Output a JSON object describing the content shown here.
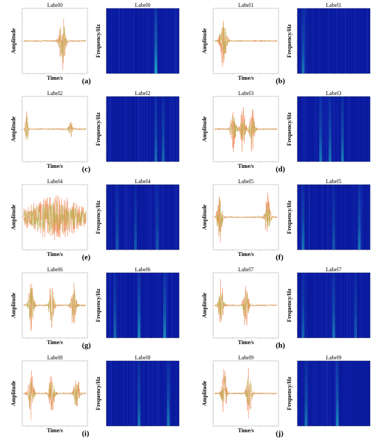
{
  "figure": {
    "panels": [
      {
        "caption": "(a)",
        "wave_title": "Label0",
        "spec_title": "Label0"
      },
      {
        "caption": "(b)",
        "wave_title": "Label1",
        "spec_title": "Label1"
      },
      {
        "caption": "(c)",
        "wave_title": "Label2",
        "spec_title": "Label2"
      },
      {
        "caption": "(d)",
        "wave_title": "Label3",
        "spec_title": "Label3"
      },
      {
        "caption": "(e)",
        "wave_title": "Label4",
        "spec_title": "Label4"
      },
      {
        "caption": "(f)",
        "wave_title": "Label5",
        "spec_title": "Label5"
      },
      {
        "caption": "(g)",
        "wave_title": "Label6",
        "spec_title": "Label6"
      },
      {
        "caption": "(h)",
        "wave_title": "Label7",
        "spec_title": "Label7"
      },
      {
        "caption": "(i)",
        "wave_title": "Label8",
        "spec_title": "Label8"
      },
      {
        "caption": "(j)",
        "wave_title": "Label9",
        "spec_title": "Label9"
      }
    ],
    "wave_xlabel": "Time/s",
    "wave_ylabel": "Amplitude",
    "spec_ylabel": "Frequency/Hz",
    "wave_colors": {
      "raw": "#f08050",
      "filtered": "#b8b048"
    },
    "spec_colors": {
      "background": "#0a1a9e",
      "band": "#22c8c8"
    }
  },
  "chart_data": [
    {
      "panel": "(a)",
      "type": "line",
      "title": "Label0",
      "xlabel": "Time/s",
      "ylabel": "Amplitude",
      "bursts": [
        {
          "t": 0.62,
          "amp": 0.95,
          "width": 0.05
        }
      ]
    },
    {
      "panel": "(a)",
      "type": "heatmap",
      "title": "Label0",
      "ylabel": "Frequency/Hz",
      "bands": [
        {
          "t": 0.68,
          "strength": 0.9
        }
      ]
    },
    {
      "panel": "(b)",
      "type": "line",
      "title": "Label1",
      "xlabel": "Time/s",
      "ylabel": "Amplitude",
      "bursts": [
        {
          "t": 0.14,
          "amp": 0.95,
          "width": 0.05
        }
      ]
    },
    {
      "panel": "(b)",
      "type": "heatmap",
      "title": "Label1",
      "ylabel": "Frequency/Hz",
      "bands": [
        {
          "t": 0.08,
          "strength": 0.6
        }
      ]
    },
    {
      "panel": "(c)",
      "type": "line",
      "title": "Label2",
      "xlabel": "Time/s",
      "ylabel": "Amplitude",
      "bursts": [
        {
          "t": 0.05,
          "amp": 0.95,
          "width": 0.02
        },
        {
          "t": 0.75,
          "amp": 0.35,
          "width": 0.03
        }
      ]
    },
    {
      "panel": "(c)",
      "type": "heatmap",
      "title": "Label2",
      "ylabel": "Frequency/Hz",
      "bands": [
        {
          "t": 0.68,
          "strength": 0.5
        },
        {
          "t": 0.78,
          "strength": 0.5
        }
      ]
    },
    {
      "panel": "(d)",
      "type": "line",
      "title": "Label3",
      "xlabel": "Time/s",
      "ylabel": "Amplitude",
      "bursts": [
        {
          "t": 0.3,
          "amp": 0.85,
          "width": 0.04
        },
        {
          "t": 0.45,
          "amp": 0.8,
          "width": 0.04
        },
        {
          "t": 0.6,
          "amp": 0.8,
          "width": 0.04
        }
      ]
    },
    {
      "panel": "(d)",
      "type": "heatmap",
      "title": "Label3",
      "ylabel": "Frequency/Hz",
      "bands": [
        {
          "t": 0.32,
          "strength": 0.6
        },
        {
          "t": 0.45,
          "strength": 0.6
        },
        {
          "t": 0.62,
          "strength": 0.6
        }
      ]
    },
    {
      "panel": "(e)",
      "type": "line",
      "title": "Label4",
      "xlabel": "Time/s",
      "ylabel": "Amplitude",
      "bursts": [
        {
          "t": 0.5,
          "amp": 0.75,
          "width": 0.5
        }
      ]
    },
    {
      "panel": "(e)",
      "type": "heatmap",
      "title": "Label4",
      "ylabel": "Frequency/Hz",
      "bands": [
        {
          "t": 0.15,
          "strength": 0.4
        },
        {
          "t": 0.4,
          "strength": 0.4
        },
        {
          "t": 0.7,
          "strength": 0.4
        }
      ]
    },
    {
      "panel": "(f)",
      "type": "line",
      "title": "Label5",
      "xlabel": "Time/s",
      "ylabel": "Amplitude",
      "bursts": [
        {
          "t": 0.08,
          "amp": 0.9,
          "width": 0.04
        },
        {
          "t": 0.85,
          "amp": 0.8,
          "width": 0.04
        }
      ]
    },
    {
      "panel": "(f)",
      "type": "heatmap",
      "title": "Label5",
      "ylabel": "Frequency/Hz",
      "bands": [
        {
          "t": 0.08,
          "strength": 0.6
        },
        {
          "t": 0.5,
          "strength": 0.4
        },
        {
          "t": 0.85,
          "strength": 0.6
        }
      ]
    },
    {
      "panel": "(g)",
      "type": "line",
      "title": "Label6",
      "xlabel": "Time/s",
      "ylabel": "Amplitude",
      "bursts": [
        {
          "t": 0.12,
          "amp": 0.9,
          "width": 0.04
        },
        {
          "t": 0.45,
          "amp": 0.9,
          "width": 0.04
        },
        {
          "t": 0.8,
          "amp": 0.85,
          "width": 0.04
        }
      ]
    },
    {
      "panel": "(g)",
      "type": "heatmap",
      "title": "Label6",
      "ylabel": "Frequency/Hz",
      "bands": [
        {
          "t": 0.12,
          "strength": 0.5
        },
        {
          "t": 0.45,
          "strength": 0.7
        },
        {
          "t": 0.8,
          "strength": 0.7
        }
      ]
    },
    {
      "panel": "(h)",
      "type": "line",
      "title": "Label7",
      "xlabel": "Time/s",
      "ylabel": "Amplitude",
      "bursts": [
        {
          "t": 0.1,
          "amp": 0.9,
          "width": 0.04
        },
        {
          "t": 0.5,
          "amp": 0.8,
          "width": 0.04
        }
      ]
    },
    {
      "panel": "(h)",
      "type": "heatmap",
      "title": "Label7",
      "ylabel": "Frequency/Hz",
      "bands": [
        {
          "t": 0.08,
          "strength": 0.5
        },
        {
          "t": 0.5,
          "strength": 0.6
        },
        {
          "t": 0.8,
          "strength": 0.4
        }
      ]
    },
    {
      "panel": "(i)",
      "type": "line",
      "title": "Label8",
      "xlabel": "Time/s",
      "ylabel": "Amplitude",
      "bursts": [
        {
          "t": 0.12,
          "amp": 0.9,
          "width": 0.04
        },
        {
          "t": 0.45,
          "amp": 0.8,
          "width": 0.04
        },
        {
          "t": 0.85,
          "amp": 0.8,
          "width": 0.04
        }
      ]
    },
    {
      "panel": "(i)",
      "type": "heatmap",
      "title": "Label8",
      "ylabel": "Frequency/Hz",
      "bands": [
        {
          "t": 0.45,
          "strength": 0.6
        },
        {
          "t": 0.85,
          "strength": 0.6
        }
      ]
    },
    {
      "panel": "(j)",
      "type": "line",
      "title": "Label9",
      "xlabel": "Time/s",
      "ylabel": "Amplitude",
      "bursts": [
        {
          "t": 0.15,
          "amp": 0.9,
          "width": 0.04
        },
        {
          "t": 0.55,
          "amp": 0.9,
          "width": 0.04
        }
      ]
    },
    {
      "panel": "(j)",
      "type": "heatmap",
      "title": "Label9",
      "ylabel": "Frequency/Hz",
      "bands": [
        {
          "t": 0.12,
          "strength": 0.6
        },
        {
          "t": 0.55,
          "strength": 0.7
        }
      ]
    }
  ]
}
